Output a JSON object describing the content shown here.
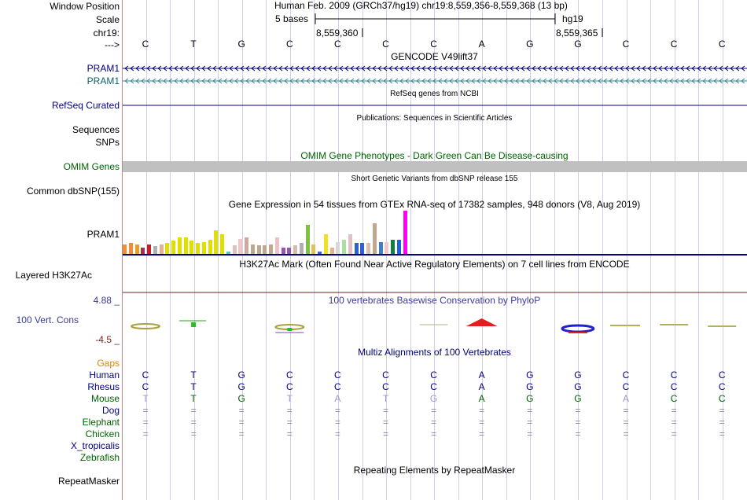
{
  "labels": {
    "window_position": "Window Position",
    "scale": "Scale",
    "chrom": "chr19:",
    "arrow": "--->",
    "pram1_a": "PRAM1",
    "pram1_b": "PRAM1",
    "refseq": "RefSeq Curated",
    "sequences": "Sequences",
    "snps": "SNPs",
    "omim": "OMIM Genes",
    "dbsnp": "Common dbSNP(155)",
    "gtex": "PRAM1",
    "h3k27ac": "Layered H3K27Ac",
    "phylop_max": "4.88 _",
    "phylop": "100 Vert. Cons",
    "phylop_min": "-4.5 _",
    "gaps": "Gaps",
    "human": "Human",
    "rhesus": "Rhesus",
    "mouse": "Mouse",
    "dog": "Dog",
    "elephant": "Elephant",
    "chicken": "Chicken",
    "x_tropicalis": "X_tropicalis",
    "zebrafish": "Zebrafish",
    "repeatmasker": "RepeatMasker"
  },
  "ruler": {
    "position": "Human Feb. 2009 (GRCh37/hg19)    chr19:8,559,356-8,559,368 (13 bp)",
    "scale_left": "5 bases",
    "scale_right": "hg19",
    "coord1": "8,559,360",
    "coord2": "8,559,365"
  },
  "bases": [
    "C",
    "T",
    "G",
    "C",
    "C",
    "C",
    "C",
    "A",
    "G",
    "G",
    "C",
    "C",
    "C"
  ],
  "tracks": {
    "gencode": "GENCODE V49lift37",
    "refseq": "RefSeq genes from NCBI",
    "publications": "Publications: Sequences in Scientific Articles",
    "omim": "OMIM Gene Phenotypes - Dark Green Can Be Disease-causing",
    "dbsnp": "Short Genetic Variants from dbSNP release 155",
    "gtex": "Gene Expression in 54 tissues from GTEx RNA-seq of 17382 samples, 948 donors (V8, Aug 2019)",
    "h3k27ac": "H3K27Ac Mark (Often Found Near Active Regulatory Elements) on 7 cell lines from ENCODE",
    "phylop": "100 vertebrates Basewise Conservation by PhyloP",
    "multiz": "Multiz Alignments of 100 Vertebrates",
    "repeatmasker": "Repeating Elements by RepeatMasker"
  },
  "alignment": {
    "human": [
      "C",
      "T",
      "G",
      "C",
      "C",
      "C",
      "C",
      "A",
      "G",
      "G",
      "C",
      "C",
      "C"
    ],
    "rhesus": [
      "C",
      "T",
      "G",
      "C",
      "C",
      "C",
      "C",
      "A",
      "G",
      "G",
      "C",
      "C",
      "C"
    ],
    "mouse": [
      "T",
      "T",
      "G",
      "T",
      "A",
      "T",
      "G",
      "A",
      "G",
      "G",
      "A",
      "C",
      "C"
    ],
    "dog": [
      "=",
      "=",
      "=",
      "=",
      "=",
      "=",
      "=",
      "=",
      "=",
      "=",
      "=",
      "=",
      "="
    ],
    "elephant": [
      "=",
      "=",
      "=",
      "=",
      "=",
      "=",
      "=",
      "=",
      "=",
      "=",
      "=",
      "=",
      "="
    ],
    "chicken": [
      "=",
      "=",
      "=",
      "=",
      "=",
      "=",
      "=",
      "=",
      "=",
      "=",
      "=",
      "=",
      "="
    ]
  },
  "mouse_highlight": [
    false,
    true,
    true,
    false,
    false,
    false,
    false,
    true,
    true,
    true,
    false,
    true,
    true
  ],
  "gtex_bars": [
    {
      "c": "#f08c3c",
      "v": 0.22
    },
    {
      "c": "#f08c3c",
      "v": 0.25
    },
    {
      "c": "#e4a020",
      "v": 0.22
    },
    {
      "c": "#a03050",
      "v": 0.15
    },
    {
      "c": "#c4202c",
      "v": 0.22
    },
    {
      "c": "#b0b0b0",
      "v": 0.18
    },
    {
      "c": "#e8b090",
      "v": 0.22
    },
    {
      "c": "#e0e000",
      "v": 0.25
    },
    {
      "c": "#e0e000",
      "v": 0.3
    },
    {
      "c": "#e0e000",
      "v": 0.38
    },
    {
      "c": "#e0e000",
      "v": 0.38
    },
    {
      "c": "#e0e000",
      "v": 0.3
    },
    {
      "c": "#e0e000",
      "v": 0.25
    },
    {
      "c": "#e0e000",
      "v": 0.28
    },
    {
      "c": "#e0e000",
      "v": 0.32
    },
    {
      "c": "#e0e000",
      "v": 0.54
    },
    {
      "c": "#e0e000",
      "v": 0.45
    },
    {
      "c": "#50c8c0",
      "v": 0.05
    },
    {
      "c": "#e0c0c0",
      "v": 0.2
    },
    {
      "c": "#f0c8c8",
      "v": 0.35
    },
    {
      "c": "#d0a8a0",
      "v": 0.38
    },
    {
      "c": "#c0a890",
      "v": 0.22
    },
    {
      "c": "#c0a890",
      "v": 0.2
    },
    {
      "c": "#c0a890",
      "v": 0.2
    },
    {
      "c": "#c0a890",
      "v": 0.22
    },
    {
      "c": "#f0c0c8",
      "v": 0.38
    },
    {
      "c": "#a050b0",
      "v": 0.15
    },
    {
      "c": "#a050b0",
      "v": 0.15
    },
    {
      "c": "#d8b8b0",
      "v": 0.2
    },
    {
      "c": "#b0b0b0",
      "v": 0.25
    },
    {
      "c": "#80c040",
      "v": 0.68
    },
    {
      "c": "#e0c060",
      "v": 0.22
    },
    {
      "c": "#4060c0",
      "v": 0.05
    },
    {
      "c": "#f0e020",
      "v": 0.45
    },
    {
      "c": "#e8b090",
      "v": 0.15
    },
    {
      "c": "#d8d8d8",
      "v": 0.28
    },
    {
      "c": "#a8e0a0",
      "v": 0.32
    },
    {
      "c": "#e0c0c0",
      "v": 0.45
    },
    {
      "c": "#3060d0",
      "v": 0.25
    },
    {
      "c": "#3060d0",
      "v": 0.25
    },
    {
      "c": "#d8c0b0",
      "v": 0.25
    },
    {
      "c": "#c0a890",
      "v": 0.7
    },
    {
      "c": "#4080c0",
      "v": 0.28
    },
    {
      "c": "#f0c8c8",
      "v": 0.28
    },
    {
      "c": "#108040",
      "v": 0.32
    },
    {
      "c": "#2060e0",
      "v": 0.32
    },
    {
      "c": "#ff00ff",
      "v": 1.0
    }
  ],
  "colors": {
    "navy": "#000080",
    "teal": "#106070",
    "green": "#006400",
    "omim_fill": "#c0c0c0",
    "gaps": "#d28a00",
    "phylop_label": "#3a3a9a"
  }
}
